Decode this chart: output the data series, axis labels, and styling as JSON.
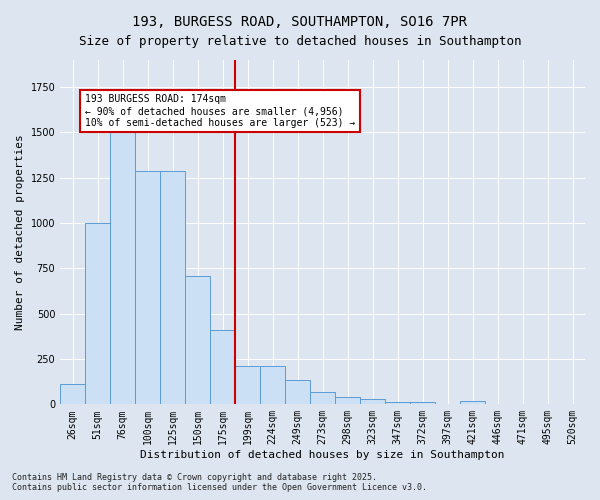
{
  "title": "193, BURGESS ROAD, SOUTHAMPTON, SO16 7PR",
  "subtitle": "Size of property relative to detached houses in Southampton",
  "xlabel": "Distribution of detached houses by size in Southampton",
  "ylabel": "Number of detached properties",
  "categories": [
    "26sqm",
    "51sqm",
    "76sqm",
    "100sqm",
    "125sqm",
    "150sqm",
    "175sqm",
    "199sqm",
    "224sqm",
    "249sqm",
    "273sqm",
    "298sqm",
    "323sqm",
    "347sqm",
    "372sqm",
    "397sqm",
    "421sqm",
    "446sqm",
    "471sqm",
    "495sqm",
    "520sqm"
  ],
  "values": [
    110,
    1000,
    1500,
    1290,
    1290,
    710,
    410,
    210,
    210,
    135,
    70,
    40,
    30,
    15,
    15,
    0,
    20,
    0,
    0,
    0,
    0
  ],
  "bar_color": "#cce0f5",
  "bar_edge_color": "#5b9bd5",
  "vline_pos": 6.5,
  "vline_color": "#cc0000",
  "annotation_text": "193 BURGESS ROAD: 174sqm\n← 90% of detached houses are smaller (4,956)\n10% of semi-detached houses are larger (523) →",
  "annotation_box_color": "#ffffff",
  "annotation_box_edge": "#cc0000",
  "bg_color": "#dde6f0",
  "plot_bg_color": "#dde6f0",
  "footer": "Contains HM Land Registry data © Crown copyright and database right 2025.\nContains public sector information licensed under the Open Government Licence v3.0.",
  "ylim": [
    0,
    1900
  ],
  "title_fontsize": 10,
  "subtitle_fontsize": 9,
  "axis_label_fontsize": 8,
  "tick_fontsize": 7,
  "ylabel_fontsize": 8
}
